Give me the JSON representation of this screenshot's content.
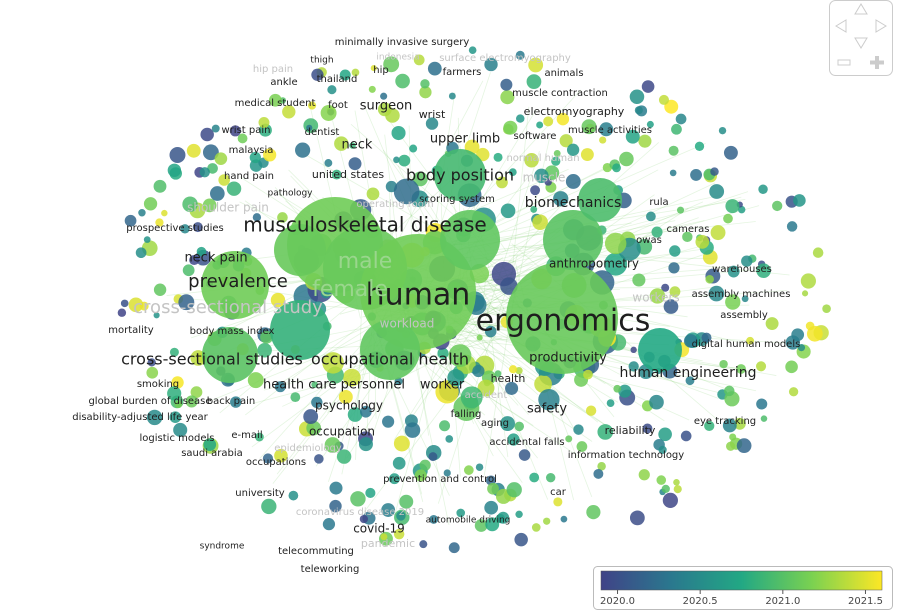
{
  "nodes": [
    {
      "label": "human"
    },
    {
      "label": "ergonomics"
    },
    {
      "label": "musculoskeletal disease"
    },
    {
      "label": "male"
    },
    {
      "label": "female"
    },
    {
      "label": "prevalence"
    },
    {
      "label": "cross-sectional study"
    },
    {
      "label": "cross-sectional studies"
    },
    {
      "label": "occupational health"
    },
    {
      "label": "body position"
    },
    {
      "label": "biomechanics"
    },
    {
      "label": "human engineering"
    },
    {
      "label": "productivity"
    },
    {
      "label": "anthropometry"
    },
    {
      "label": "surgeon"
    },
    {
      "label": "upper limb"
    },
    {
      "label": "neck"
    },
    {
      "label": "neck pain"
    },
    {
      "label": "health care personnel"
    },
    {
      "label": "worker"
    },
    {
      "label": "psychology"
    },
    {
      "label": "safety"
    },
    {
      "label": "occupation"
    },
    {
      "label": "workload"
    },
    {
      "label": "health"
    },
    {
      "label": "reliability"
    },
    {
      "label": "eye tracking"
    },
    {
      "label": "digital human models"
    },
    {
      "label": "assembly"
    },
    {
      "label": "assembly machines"
    },
    {
      "label": "warehouses"
    },
    {
      "label": "cameras"
    },
    {
      "label": "owas"
    },
    {
      "label": "rula"
    },
    {
      "label": "electromyography"
    },
    {
      "label": "muscle contraction"
    },
    {
      "label": "muscle activities"
    },
    {
      "label": "software"
    },
    {
      "label": "animals"
    },
    {
      "label": "surface electromyography"
    },
    {
      "label": "minimally invasive surgery"
    },
    {
      "label": "farmers"
    },
    {
      "label": "hip"
    },
    {
      "label": "thailand"
    },
    {
      "label": "thigh"
    },
    {
      "label": "ankle"
    },
    {
      "label": "hip pain"
    },
    {
      "label": "indonesia"
    },
    {
      "label": "medical student"
    },
    {
      "label": "foot"
    },
    {
      "label": "dentist"
    },
    {
      "label": "wrist"
    },
    {
      "label": "wrist pain"
    },
    {
      "label": "malaysia"
    },
    {
      "label": "hand pain"
    },
    {
      "label": "united states"
    },
    {
      "label": "pathology"
    },
    {
      "label": "scoring system"
    },
    {
      "label": "operating room"
    },
    {
      "label": "prospective studies"
    },
    {
      "label": "shoulder pain"
    },
    {
      "label": "mortality"
    },
    {
      "label": "body mass index"
    },
    {
      "label": "smoking"
    },
    {
      "label": "back pain"
    },
    {
      "label": "global burden of disease"
    },
    {
      "label": "disability-adjusted life year"
    },
    {
      "label": "logistic models"
    },
    {
      "label": "e-mail"
    },
    {
      "label": "saudi arabia"
    },
    {
      "label": "occupations"
    },
    {
      "label": "university"
    },
    {
      "label": "coronavirus disease 2019"
    },
    {
      "label": "covid-19"
    },
    {
      "label": "pandemic"
    },
    {
      "label": "syndrome"
    },
    {
      "label": "telecommuting"
    },
    {
      "label": "teleworking"
    },
    {
      "label": "prevention and control"
    },
    {
      "label": "automobile driving"
    },
    {
      "label": "car"
    },
    {
      "label": "information technology"
    },
    {
      "label": "accidental falls"
    },
    {
      "label": "aging"
    },
    {
      "label": "falling"
    },
    {
      "label": "accident"
    },
    {
      "label": "epidemiology"
    },
    {
      "label": "workers"
    },
    {
      "label": "normal human"
    },
    {
      "label": "muscle"
    }
  ],
  "colorbar": {
    "range": [
      2019.9,
      2021.6
    ],
    "ticks": [
      {
        "value": 2020,
        "label": "2020.0"
      },
      {
        "value": 2020.5,
        "label": "2020.5"
      },
      {
        "value": 2021,
        "label": "2021.0"
      },
      {
        "value": 2021.5,
        "label": "2021.5"
      }
    ]
  }
}
